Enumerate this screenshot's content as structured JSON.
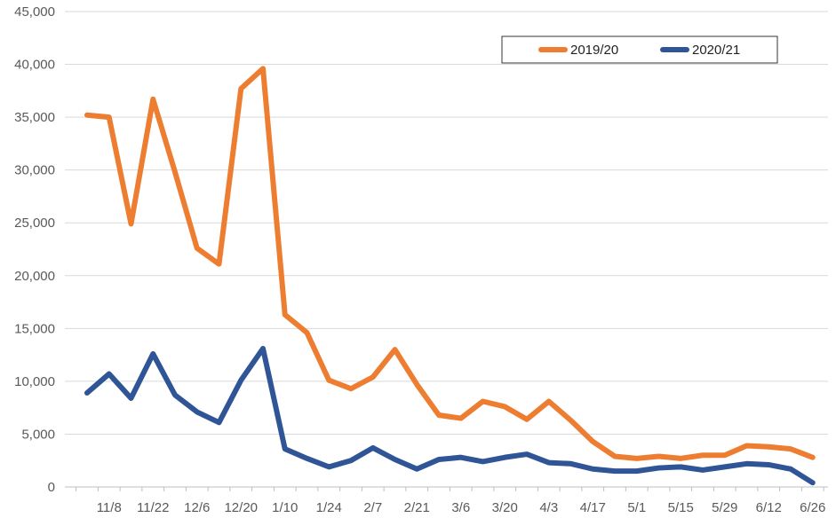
{
  "chart_data": {
    "type": "line",
    "title": "",
    "xlabel": "",
    "ylabel": "",
    "ylim": [
      0,
      45000
    ],
    "yticks": [
      0,
      5000,
      10000,
      15000,
      20000,
      25000,
      30000,
      35000,
      40000,
      45000
    ],
    "ytick_labels": [
      "0",
      "5,000",
      "10,000",
      "15,000",
      "20,000",
      "25,000",
      "30,000",
      "35,000",
      "40,000",
      "45,000"
    ],
    "x_tick_labels": [
      "11/8",
      "11/22",
      "12/6",
      "12/20",
      "1/10",
      "1/24",
      "2/7",
      "2/21",
      "3/6",
      "3/20",
      "4/3",
      "4/17",
      "5/1",
      "5/15",
      "5/29",
      "6/12",
      "6/26"
    ],
    "grid": true,
    "legend_position": "top-right",
    "series": [
      {
        "name": "2019/20",
        "color": "#ED7D31",
        "values": [
          35200,
          35000,
          24900,
          36700,
          29800,
          22600,
          21100,
          37700,
          39600,
          16300,
          14600,
          10100,
          9300,
          10400,
          13000,
          9700,
          6800,
          6500,
          8100,
          7600,
          6400,
          8100,
          6300,
          4300,
          2900,
          2700,
          2900,
          2700,
          3000,
          3000,
          3900,
          3800,
          3600,
          2800
        ]
      },
      {
        "name": "2020/21",
        "color": "#2F5597",
        "values": [
          8900,
          10700,
          8400,
          12600,
          8700,
          7100,
          6100,
          10100,
          13100,
          3600,
          2700,
          1900,
          2500,
          3700,
          2600,
          1700,
          2600,
          2800,
          2400,
          2800,
          3100,
          2300,
          2200,
          1700,
          1500,
          1500,
          1800,
          1900,
          1600,
          1900,
          2200,
          2100,
          1700,
          400
        ]
      }
    ]
  }
}
